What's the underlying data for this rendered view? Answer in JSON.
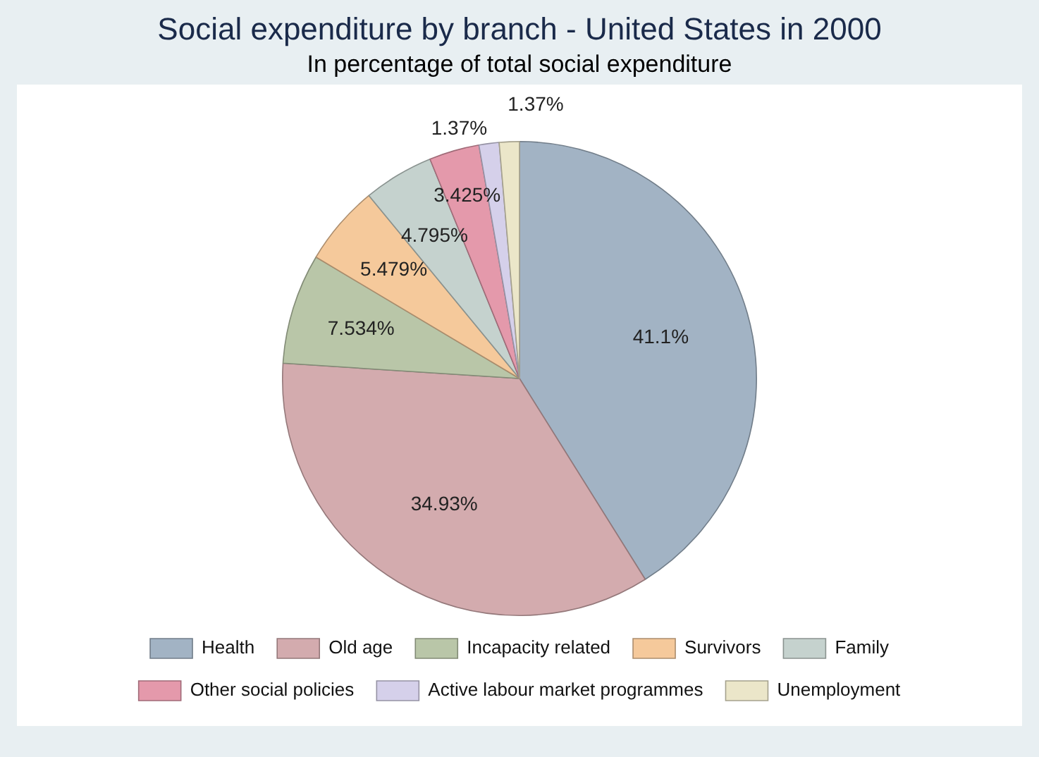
{
  "chart_data": {
    "type": "pie",
    "title": "Social expenditure by branch - United States in 2000",
    "subtitle": "In percentage of total social expenditure",
    "categories": [
      "Health",
      "Old age",
      "Incapacity related",
      "Survivors",
      "Family",
      "Other social policies",
      "Active labour market programmes",
      "Unemployment"
    ],
    "values": [
      41.1,
      34.93,
      7.534,
      5.479,
      4.795,
      3.425,
      1.37,
      1.37
    ],
    "value_labels": [
      "41.1%",
      "34.93%",
      "7.534%",
      "5.479%",
      "4.795%",
      "3.425%",
      "1.37%",
      "1.37%"
    ],
    "colors": [
      "#a2b3c4",
      "#d3abae",
      "#b9c6a8",
      "#f5c99b",
      "#c5d2ce",
      "#e499ab",
      "#d5d0ea",
      "#ebe6c9"
    ],
    "legend": "bottom"
  }
}
